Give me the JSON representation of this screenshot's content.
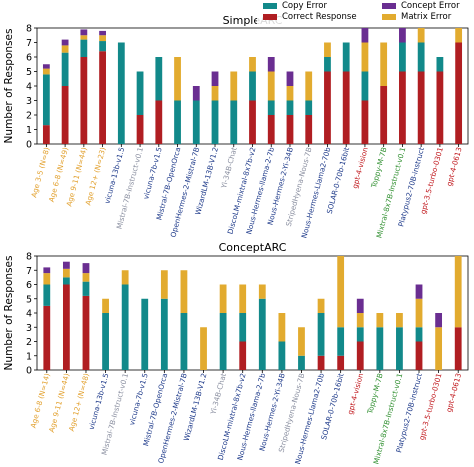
{
  "legend": {
    "items": [
      {
        "label": "Copy Error",
        "color": "#12898a"
      },
      {
        "label": "Correct Response",
        "color": "#b01e22"
      },
      {
        "label": "Concept Error",
        "color": "#6a2e91"
      },
      {
        "label": "Matrix Error",
        "color": "#e2ab2f"
      }
    ]
  },
  "colors": {
    "human": "#e2a12f",
    "open": "#1e3a8a",
    "closed": "#c0161b",
    "other_open": "#8a8fa0",
    "green": "#2f8f2f"
  },
  "chart_data": [
    {
      "type": "bar",
      "stacked": true,
      "title": "SimpleARC",
      "ylabel": "Number of Responses",
      "ylim": [
        0,
        8
      ],
      "yticks": [
        0,
        1,
        2,
        3,
        4,
        5,
        6,
        7,
        8
      ],
      "grid": false,
      "legend_position": "top-right",
      "categories": [
        "Age 3-5 (N=8)",
        "Age 6-8 (N=49)",
        "Age 9-11 (N=44)",
        "Age 12+ (N=23)",
        "vicuna-13b-v1.5",
        "Mistral-7B-Instruct-v0.1",
        "vicuna-7b-v1.5",
        "Mistral-7B-OpenOrca",
        "OpenHermes-2-Mistral-7B",
        "WizardLM-13B-V1.2",
        "Yi-34B-Chat",
        "DiscoLM-mixtral-8x7b-v2",
        "Nous-Hermes-llama-2-7b",
        "Nous-Hermes-2-Yi-34B",
        "StripedHyena-Nous-7B",
        "Nous-Hermes-Llama2-70b",
        "SOLAR-0-70b-16bit",
        "gpt-4-vision",
        "Toppy-M-7B",
        "Mixtral-8x7B-Instruct-v0.1",
        "Platypus2-70B-instruct",
        "gpt-3.5-turbo-0301",
        "gpt-4-0613"
      ],
      "label_colors": [
        "human",
        "human",
        "human",
        "human",
        "open",
        "other_open",
        "open",
        "open",
        "open",
        "open",
        "other_open",
        "open",
        "open",
        "open",
        "other_open",
        "open",
        "open",
        "closed",
        "green",
        "green",
        "open",
        "closed",
        "closed"
      ],
      "series": [
        {
          "name": "Correct Response",
          "color": "#b01e22",
          "values": [
            1.3,
            4.0,
            6.0,
            6.4,
            0,
            2.0,
            3.0,
            0,
            0,
            0,
            0,
            3.0,
            2.0,
            2.0,
            2.0,
            5.0,
            5.0,
            3.0,
            4.0,
            5.0,
            5.0,
            5.0,
            7.0
          ]
        },
        {
          "name": "Copy Error",
          "color": "#12898a",
          "values": [
            3.5,
            2.3,
            1.2,
            0.7,
            7.0,
            3.0,
            3.0,
            3.0,
            3.0,
            3.0,
            3.0,
            2.0,
            1.0,
            1.0,
            1.0,
            1.0,
            2.0,
            2.0,
            0,
            2.0,
            2.0,
            1.0,
            0
          ]
        },
        {
          "name": "Matrix Error",
          "color": "#e2ab2f",
          "values": [
            0.4,
            0.5,
            0.3,
            0.4,
            0,
            0,
            0,
            3.0,
            0,
            1.0,
            2.0,
            1.0,
            2.0,
            1.0,
            2.0,
            1.0,
            0,
            2.0,
            3.0,
            0,
            1.0,
            0,
            1.0
          ]
        },
        {
          "name": "Concept Error",
          "color": "#6a2e91",
          "values": [
            0.3,
            0.4,
            0.4,
            0.3,
            0,
            0,
            0,
            0,
            1.0,
            1.0,
            0,
            0,
            1.0,
            1.0,
            0,
            0,
            0,
            1.0,
            0,
            1.0,
            0,
            0,
            0
          ]
        }
      ]
    },
    {
      "type": "bar",
      "stacked": true,
      "title": "ConceptARC",
      "ylabel": "Number of Responses",
      "ylim": [
        0,
        8
      ],
      "yticks": [
        0,
        1,
        2,
        3,
        4,
        5,
        6,
        7,
        8
      ],
      "grid": false,
      "categories": [
        "Age 6-8 (N=14)",
        "Age 9-11 (N=44)",
        "Age 12+ (N=48)",
        "vicuna-13b-v1.5",
        "Mistral-7B-Instruct-v0.1",
        "vicuna-7b-v1.5",
        "Mistral-7B-OpenOrca",
        "OpenHermes-2-Mistral-7B",
        "WizardLM-13B-V1.2",
        "Yi-34B-Chat",
        "DiscoLM-mixtral-8x7b-v2",
        "Nous-Hermes-llama-2-7b",
        "Nous-Hermes-2-Yi-34B",
        "StripedHyena-Nous-7B",
        "Nous-Hermes-Llama2-70b",
        "SOLAR-0-70b-16bit",
        "gpt-4-vision",
        "Toppy-M-7B",
        "Mixtral-8x7B-Instruct-v0.1",
        "Platypus2-70B-instruct",
        "gpt-3.5-turbo-0301",
        "gpt-4-0613"
      ],
      "label_colors": [
        "human",
        "human",
        "human",
        "open",
        "other_open",
        "open",
        "open",
        "open",
        "open",
        "other_open",
        "open",
        "open",
        "open",
        "other_open",
        "open",
        "open",
        "closed",
        "green",
        "green",
        "open",
        "closed",
        "closed"
      ],
      "series": [
        {
          "name": "Correct Response",
          "color": "#b01e22",
          "values": [
            4.5,
            6.0,
            5.2,
            0,
            0,
            0,
            0,
            0,
            0,
            0,
            2.0,
            0,
            0,
            0,
            1.0,
            1.0,
            2.0,
            0,
            0,
            2.0,
            0,
            3.0
          ]
        },
        {
          "name": "Copy Error",
          "color": "#12898a",
          "values": [
            1.5,
            0.5,
            1.0,
            4.0,
            6.0,
            5.0,
            5.0,
            4.0,
            0,
            4.0,
            2.0,
            5.0,
            2.0,
            1.0,
            3.0,
            2.0,
            1.0,
            3.0,
            3.0,
            1.0,
            0,
            0
          ]
        },
        {
          "name": "Matrix Error",
          "color": "#e2ab2f",
          "values": [
            0.8,
            0.6,
            0.6,
            1.0,
            1.0,
            0,
            2.0,
            3.0,
            3.0,
            2.0,
            2.0,
            1.0,
            2.0,
            2.0,
            1.0,
            5.0,
            1.0,
            1.0,
            1.0,
            2.0,
            3.0,
            5.0
          ]
        },
        {
          "name": "Concept Error",
          "color": "#6a2e91",
          "values": [
            0.4,
            0.5,
            0.7,
            0,
            0,
            0,
            0,
            0,
            0,
            0,
            0,
            0,
            0,
            0,
            0,
            0,
            1.0,
            0,
            0,
            1.0,
            1.0,
            0
          ]
        }
      ]
    }
  ]
}
